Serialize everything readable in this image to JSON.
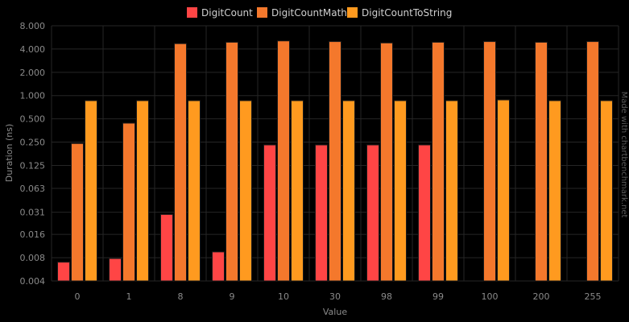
{
  "chart_data": {
    "type": "bar",
    "y_scale": "log2",
    "categories": [
      "0",
      "1",
      "8",
      "9",
      "10",
      "30",
      "98",
      "99",
      "100",
      "200",
      "255"
    ],
    "series": [
      {
        "name": "DigitCount",
        "color": "#ff4545",
        "values": [
          0.007,
          0.0078,
          0.029,
          0.0095,
          0.23,
          0.23,
          0.23,
          0.23,
          null,
          null,
          null
        ]
      },
      {
        "name": "DigitCountMath",
        "color": "#f4782c",
        "values": [
          0.24,
          0.44,
          4.7,
          4.9,
          5.1,
          5.0,
          4.8,
          4.9,
          5.0,
          4.9,
          5.0
        ]
      },
      {
        "name": "DigitCountToString",
        "color": "#ff9a1f",
        "values": [
          0.86,
          0.86,
          0.86,
          0.86,
          0.86,
          0.86,
          0.86,
          0.86,
          0.88,
          0.86,
          0.86
        ]
      }
    ],
    "y_ticks": [
      "0.004",
      "0.008",
      "0.016",
      "0.031",
      "0.063",
      "0.125",
      "0.250",
      "0.500",
      "1.000",
      "2.000",
      "4.000",
      "8.000"
    ],
    "ylim": [
      0.004,
      8.0
    ],
    "xlabel": "Value",
    "ylabel": "Duration (ns)",
    "legend_position": "top",
    "grid": true,
    "watermark": "Made with chartbenchmark.net"
  }
}
